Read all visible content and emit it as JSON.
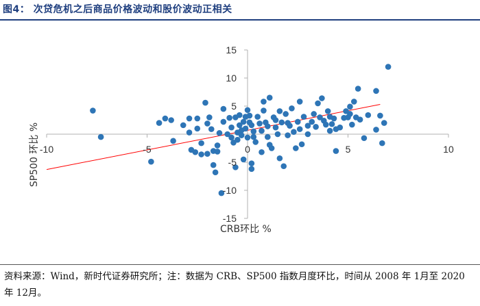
{
  "figure": {
    "title": "图4： 次贷危机之后商品价格波动和股价波动正相关",
    "source": "资料来源：Wind，新时代证券研究所；注：数据为 CRB、SP500 指数月度环比，时间从 2008 年 1月至 2020 年 12月。"
  },
  "colors": {
    "marker": "#2e75b6",
    "trendline": "#ff0000",
    "axis": "#b0b0b0",
    "title": "#1f3f7f"
  },
  "chart_data": {
    "type": "scatter",
    "xlabel": "CRB环比 %",
    "ylabel": "SP500 环比 %",
    "xlim": [
      -10,
      10
    ],
    "ylim": [
      -15,
      15
    ],
    "xticks": [
      -10,
      -5,
      0,
      5,
      10
    ],
    "yticks": [
      -15,
      -10,
      -5,
      5,
      10,
      15
    ],
    "grid": false,
    "trendline": {
      "type": "linear",
      "from": [
        -10,
        -6.3
      ],
      "to": [
        6.6,
        5.3
      ]
    },
    "points": [
      [
        -7.7,
        4.2
      ],
      [
        -7.3,
        -0.5
      ],
      [
        -4.8,
        -4.9
      ],
      [
        -4.4,
        2.0
      ],
      [
        -4.1,
        2.8
      ],
      [
        -3.8,
        2.5
      ],
      [
        -3.7,
        -1.2
      ],
      [
        -3.2,
        1.6
      ],
      [
        -2.9,
        2.8
      ],
      [
        -2.9,
        0.3
      ],
      [
        -2.8,
        -2.8
      ],
      [
        -2.6,
        -3.2
      ],
      [
        -2.5,
        2.8
      ],
      [
        -2.5,
        1.0
      ],
      [
        -2.3,
        -1.6
      ],
      [
        -2.3,
        -3.6
      ],
      [
        -2.1,
        5.6
      ],
      [
        -2.0,
        -3.5
      ],
      [
        -2.0,
        1.9
      ],
      [
        -1.9,
        3.0
      ],
      [
        -1.8,
        0.9
      ],
      [
        -1.7,
        -3.0
      ],
      [
        -1.7,
        -5.5
      ],
      [
        -1.6,
        -6.8
      ],
      [
        -1.5,
        -2.0
      ],
      [
        -1.5,
        -3.1
      ],
      [
        -1.4,
        0.2
      ],
      [
        -1.3,
        -10.5
      ],
      [
        -1.2,
        2.2
      ],
      [
        -1.2,
        4.5
      ],
      [
        -1.0,
        0.0
      ],
      [
        -0.9,
        2.9
      ],
      [
        -0.8,
        1.2
      ],
      [
        -0.8,
        -0.6
      ],
      [
        -0.7,
        -1.5
      ],
      [
        -0.6,
        -5.9
      ],
      [
        -0.6,
        3.0
      ],
      [
        -0.5,
        0.3
      ],
      [
        -0.5,
        -1.0
      ],
      [
        -0.4,
        3.4
      ],
      [
        -0.4,
        1.6
      ],
      [
        -0.3,
        0.7
      ],
      [
        -0.3,
        -0.2
      ],
      [
        -0.2,
        2.2
      ],
      [
        -0.2,
        -4.5
      ],
      [
        -0.1,
        3.1
      ],
      [
        -0.1,
        1.0
      ],
      [
        0.0,
        4.3
      ],
      [
        0.0,
        -0.6
      ],
      [
        0.1,
        3.3
      ],
      [
        0.1,
        2.1
      ],
      [
        0.2,
        1.6
      ],
      [
        0.2,
        -5.2
      ],
      [
        0.2,
        -6.2
      ],
      [
        0.3,
        0.5
      ],
      [
        0.3,
        -0.5
      ],
      [
        0.4,
        -1.4
      ],
      [
        0.5,
        3.1
      ],
      [
        0.6,
        1.9
      ],
      [
        0.7,
        0.6
      ],
      [
        0.7,
        -3.2
      ],
      [
        0.8,
        5.8
      ],
      [
        0.8,
        4.2
      ],
      [
        0.9,
        2.1
      ],
      [
        1.0,
        1.4
      ],
      [
        1.0,
        -0.5
      ],
      [
        1.1,
        6.5
      ],
      [
        1.1,
        -1.9
      ],
      [
        1.2,
        -2.5
      ],
      [
        1.3,
        3.0
      ],
      [
        1.4,
        2.5
      ],
      [
        1.4,
        1.2
      ],
      [
        1.5,
        0.0
      ],
      [
        1.6,
        4.1
      ],
      [
        1.6,
        -4.3
      ],
      [
        1.7,
        2.1
      ],
      [
        1.8,
        -5.7
      ],
      [
        1.9,
        3.6
      ],
      [
        2.0,
        2.0
      ],
      [
        2.0,
        -0.2
      ],
      [
        2.1,
        1.5
      ],
      [
        2.2,
        4.6
      ],
      [
        2.3,
        0.4
      ],
      [
        2.4,
        -2.5
      ],
      [
        2.5,
        2.2
      ],
      [
        2.6,
        5.8
      ],
      [
        2.6,
        0.9
      ],
      [
        2.7,
        -1.8
      ],
      [
        2.8,
        3.1
      ],
      [
        3.0,
        1.5
      ],
      [
        3.0,
        0.0
      ],
      [
        3.2,
        2.2
      ],
      [
        3.3,
        3.6
      ],
      [
        3.4,
        1.3
      ],
      [
        3.5,
        5.5
      ],
      [
        3.6,
        3.0
      ],
      [
        3.7,
        6.4
      ],
      [
        3.8,
        2.4
      ],
      [
        3.9,
        1.7
      ],
      [
        4.0,
        4.1
      ],
      [
        4.1,
        3.1
      ],
      [
        4.1,
        0.6
      ],
      [
        4.2,
        1.8
      ],
      [
        4.3,
        2.8
      ],
      [
        4.4,
        0.9
      ],
      [
        4.4,
        -3.0
      ],
      [
        4.6,
        1.2
      ],
      [
        4.8,
        2.9
      ],
      [
        4.9,
        4.1
      ],
      [
        5.0,
        3.0
      ],
      [
        5.1,
        4.9
      ],
      [
        5.1,
        3.6
      ],
      [
        5.2,
        1.7
      ],
      [
        5.3,
        5.8
      ],
      [
        5.4,
        3.0
      ],
      [
        5.5,
        8.1
      ],
      [
        5.6,
        2.6
      ],
      [
        5.8,
        -0.7
      ],
      [
        6.0,
        3.4
      ],
      [
        6.4,
        0.8
      ],
      [
        6.4,
        7.7
      ],
      [
        6.6,
        3.3
      ],
      [
        6.7,
        -1.6
      ],
      [
        6.8,
        2.0
      ],
      [
        7.0,
        12.0
      ]
    ]
  }
}
